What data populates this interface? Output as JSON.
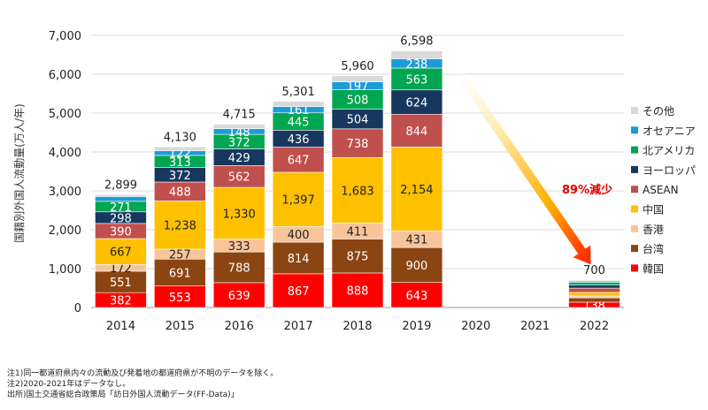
{
  "chart_data": {
    "type": "bar",
    "stacked": true,
    "ylabel": "国籍別外国人流動量(万人/年)",
    "ylim": [
      0,
      7000
    ],
    "yticks": [
      "0",
      "1,000",
      "2,000",
      "3,000",
      "4,000",
      "5,000",
      "6,000",
      "7,000"
    ],
    "grid": true,
    "legend_position": "right",
    "categories": [
      "2014",
      "2015",
      "2016",
      "2017",
      "2018",
      "2019",
      "2020",
      "2021",
      "2022"
    ],
    "totals": [
      2899,
      4130,
      4715,
      5301,
      5960,
      6598,
      null,
      null,
      700
    ],
    "total_labels": [
      "2,899",
      "4,130",
      "4,715",
      "5,301",
      "5,960",
      "6,598",
      "",
      "",
      "700"
    ],
    "series": [
      {
        "name": "韓国",
        "color": "#ff0000",
        "values": [
          382,
          553,
          639,
          867,
          888,
          643,
          null,
          null,
          138
        ],
        "labels": [
          "382",
          "553",
          "639",
          "867",
          "888",
          "643",
          "",
          "",
          "138"
        ]
      },
      {
        "name": "台湾",
        "color": "#8b4513",
        "values": [
          551,
          691,
          788,
          814,
          875,
          900,
          null,
          null,
          110
        ],
        "labels": [
          "551",
          "691",
          "788",
          "814",
          "875",
          "900",
          "",
          "",
          ""
        ]
      },
      {
        "name": "香港",
        "color": "#f8c59b",
        "values": [
          172,
          257,
          333,
          400,
          411,
          431,
          null,
          null,
          50
        ],
        "labels": [
          "172",
          "257",
          "333",
          "400",
          "411",
          "431",
          "",
          "",
          ""
        ]
      },
      {
        "name": "中国",
        "color": "#ffc000",
        "values": [
          667,
          1238,
          1330,
          1397,
          1683,
          2154,
          null,
          null,
          90
        ],
        "labels": [
          "667",
          "1,238",
          "1,330",
          "1,397",
          "1,683",
          "2,154",
          "",
          "",
          ""
        ]
      },
      {
        "name": "ASEAN",
        "color": "#c0504d",
        "values": [
          390,
          488,
          562,
          647,
          738,
          844,
          null,
          null,
          110
        ],
        "labels": [
          "390",
          "488",
          "562",
          "647",
          "738",
          "844",
          "",
          "",
          ""
        ]
      },
      {
        "name": "ヨーロッパ",
        "color": "#17375e",
        "values": [
          298,
          372,
          429,
          436,
          504,
          624,
          null,
          null,
          80
        ],
        "labels": [
          "298",
          "372",
          "429",
          "436",
          "504",
          "624",
          "",
          "",
          ""
        ]
      },
      {
        "name": "北アメリカ",
        "color": "#00a651",
        "values": [
          271,
          313,
          372,
          445,
          508,
          563,
          null,
          null,
          70
        ],
        "labels": [
          "271",
          "313",
          "372",
          "445",
          "508",
          "563",
          "",
          "",
          ""
        ]
      },
      {
        "name": "オセアニア",
        "color": "#1e9bd7",
        "values": [
          122,
          122,
          148,
          161,
          197,
          238,
          null,
          null,
          30
        ],
        "labels": [
          "",
          "122",
          "148",
          "161",
          "197",
          "238",
          "",
          "",
          ""
        ]
      },
      {
        "name": "その他",
        "color": "#d9d9d9",
        "values": [
          46,
          96,
          114,
          134,
          156,
          201,
          null,
          null,
          22
        ],
        "labels": [
          "",
          "",
          "",
          "",
          "",
          "",
          "",
          "",
          ""
        ]
      }
    ],
    "annotation": {
      "text": "89%減少",
      "color": "#e00000",
      "from_category": "2019",
      "to_category": "2022"
    }
  },
  "notes": [
    "注1)同一都道府県内々の流動及び発着地の都道府県が不明のデータを除く。",
    "注2)2020-2021年はデータなし。",
    "出所)国土交通省総合政策局「訪日外国人流動データ(FF-Data)」"
  ]
}
